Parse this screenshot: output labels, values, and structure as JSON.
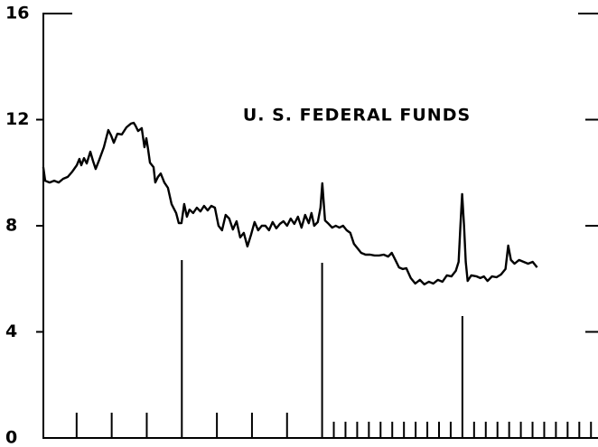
{
  "chart_data": {
    "type": "line",
    "title": "U. S. FEDERAL FUNDS",
    "xlim": [
      0,
      47.6
    ],
    "xticks": [
      3,
      6,
      9,
      12,
      15,
      18,
      21,
      24,
      25,
      26,
      27,
      28,
      29,
      30,
      31,
      32,
      33,
      34,
      35,
      36,
      37,
      38,
      39,
      40,
      41,
      42,
      43,
      44,
      45,
      46,
      47
    ],
    "ylim": [
      0,
      16
    ],
    "yticks": [
      0,
      4,
      8,
      12,
      16
    ],
    "series": [
      {
        "color": "#000000",
        "x": [
          0.15,
          0.31,
          0.69,
          1.08,
          1.47,
          1.85,
          2.24,
          2.63,
          3.01,
          3.24,
          3.4,
          3.63,
          3.86,
          4.17,
          4.4,
          4.63,
          4.94,
          5.33,
          5.71,
          5.95,
          6.18,
          6.49,
          6.87,
          7.26,
          7.64,
          7.88,
          8.03,
          8.26,
          8.57,
          8.8,
          8.96,
          9.11,
          9.27,
          9.58,
          9.73,
          9.96,
          10.19,
          10.5,
          10.81,
          11.12,
          11.51,
          11.74,
          11.97,
          12.2,
          12.43,
          12.66,
          12.97,
          13.28,
          13.59,
          13.9,
          14.21,
          14.52,
          14.83,
          15.14,
          15.44,
          15.75,
          16.06,
          16.37,
          16.68,
          16.99,
          17.3,
          17.61,
          17.92,
          18.22,
          18.53,
          18.84,
          19.15,
          19.46,
          19.77,
          20.08,
          20.39,
          20.69,
          21.0,
          21.31,
          21.62,
          21.93,
          22.24,
          22.55,
          22.86,
          23.09,
          23.32,
          23.63,
          23.86,
          24.02,
          24.25,
          24.56,
          24.86,
          25.17,
          25.48,
          25.79,
          26.1,
          26.41,
          26.72,
          27.03,
          27.34,
          27.72,
          28.11,
          28.49,
          28.88,
          29.27,
          29.65,
          29.96,
          30.27,
          30.58,
          30.89,
          31.2,
          31.58,
          31.97,
          32.36,
          32.74,
          33.13,
          33.51,
          33.9,
          34.29,
          34.67,
          35.06,
          35.44,
          35.68,
          35.83,
          35.98,
          36.14,
          36.29,
          36.45,
          36.76,
          37.22,
          37.53,
          37.84,
          38.15,
          38.53,
          38.92,
          39.3,
          39.69,
          39.92,
          40.15,
          40.46,
          40.85,
          41.24,
          41.62,
          42.01,
          42.39
        ],
        "values": [
          10.21,
          9.7,
          9.63,
          9.7,
          9.63,
          9.77,
          9.84,
          10.04,
          10.28,
          10.52,
          10.28,
          10.55,
          10.35,
          10.79,
          10.45,
          10.14,
          10.49,
          10.96,
          11.61,
          11.4,
          11.13,
          11.47,
          11.44,
          11.71,
          11.85,
          11.88,
          11.78,
          11.57,
          11.68,
          10.96,
          11.3,
          10.89,
          10.38,
          10.21,
          9.63,
          9.84,
          9.97,
          9.63,
          9.43,
          8.82,
          8.48,
          8.1,
          8.1,
          8.82,
          8.34,
          8.61,
          8.48,
          8.68,
          8.54,
          8.75,
          8.58,
          8.75,
          8.68,
          8.0,
          7.83,
          8.41,
          8.27,
          7.86,
          8.17,
          7.56,
          7.73,
          7.22,
          7.66,
          8.14,
          7.83,
          8.0,
          8.0,
          7.83,
          8.14,
          7.9,
          8.07,
          8.17,
          8.0,
          8.27,
          8.07,
          8.34,
          7.93,
          8.41,
          8.1,
          8.48,
          8.0,
          8.14,
          8.68,
          9.6,
          8.2,
          8.07,
          7.93,
          8.0,
          7.93,
          8.0,
          7.83,
          7.73,
          7.32,
          7.15,
          6.98,
          6.91,
          6.91,
          6.88,
          6.88,
          6.91,
          6.84,
          6.98,
          6.71,
          6.43,
          6.37,
          6.4,
          6.03,
          5.82,
          5.96,
          5.79,
          5.89,
          5.82,
          5.96,
          5.89,
          6.13,
          6.09,
          6.3,
          6.64,
          8.0,
          9.19,
          8.0,
          6.64,
          5.92,
          6.13,
          6.09,
          6.03,
          6.09,
          5.92,
          6.09,
          6.06,
          6.16,
          6.37,
          7.25,
          6.71,
          6.57,
          6.71,
          6.64,
          6.57,
          6.64,
          6.43
        ]
      }
    ]
  }
}
